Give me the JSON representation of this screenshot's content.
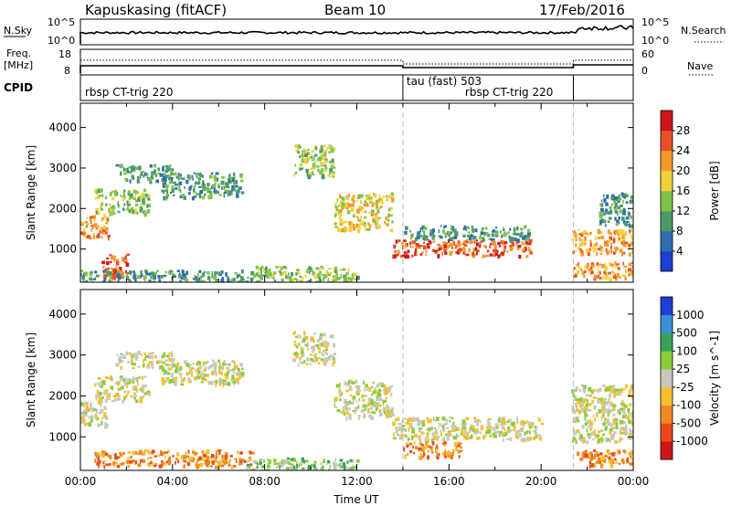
{
  "header": {
    "station": "Kapuskasing (fitACF)",
    "beam": "Beam 10",
    "date": "17/Feb/2016"
  },
  "top_panel": {
    "left_label_1": "N.Sky",
    "left_label_2": "Freq.",
    "left_label_2b": "[MHz]",
    "left_label_3": "CPID",
    "right_label_1": "N.Search",
    "right_label_2": "Nave",
    "nsky_ticks": [
      "10^5",
      "10^0"
    ],
    "freq_ticks": [
      "18",
      "8"
    ],
    "nave_ticks": [
      "60",
      "0"
    ],
    "cpid_segments": [
      {
        "start_hour": 0.0,
        "end_hour": 14.0,
        "label": "rbsp CT-trig 220"
      },
      {
        "start_hour": 14.0,
        "end_hour": 21.4,
        "label": "tau (fast) 503"
      },
      {
        "start_hour": 14.0,
        "end_hour": 21.4,
        "label": "rbsp CT-trig 220"
      }
    ]
  },
  "chart_data": [
    {
      "type": "heatmap",
      "quantity": "Power",
      "ylabel": "Slant Range [km]",
      "ylim": [
        180,
        4600
      ],
      "xlim": [
        0,
        24
      ],
      "yticks": [
        "1000",
        "2000",
        "3000",
        "4000"
      ],
      "colorbar_label": "Power [dB]",
      "colorbar_ticks": [
        "4",
        "8",
        "12",
        "16",
        "20",
        "24",
        "28"
      ],
      "colorbar_colors": [
        "#1f3fd2",
        "#2f6db0",
        "#4c9a6a",
        "#7fc34a",
        "#f2d23c",
        "#f49a2a",
        "#e8502a",
        "#cc1818"
      ],
      "regions": [
        {
          "t0": 0.0,
          "t1": 1.2,
          "r0": 1300,
          "r1": 1900,
          "level": 5
        },
        {
          "t0": 0.6,
          "t1": 3.0,
          "r0": 1900,
          "r1": 2500,
          "level": 3
        },
        {
          "t0": 1.5,
          "t1": 4.0,
          "r0": 2700,
          "r1": 3100,
          "level": 2
        },
        {
          "t0": 3.5,
          "t1": 7.0,
          "r0": 2300,
          "r1": 2900,
          "level": 2
        },
        {
          "t0": 0.9,
          "t1": 2.0,
          "r0": 300,
          "r1": 900,
          "level": 6
        },
        {
          "t0": 0.0,
          "t1": 7.5,
          "r0": 200,
          "r1": 500,
          "level": 2
        },
        {
          "t0": 7.5,
          "t1": 12.0,
          "r0": 200,
          "r1": 600,
          "level": 3
        },
        {
          "t0": 9.2,
          "t1": 11.0,
          "r0": 2800,
          "r1": 3600,
          "level": 3
        },
        {
          "t0": 11.0,
          "t1": 13.5,
          "r0": 1500,
          "r1": 2400,
          "level": 4
        },
        {
          "t0": 13.5,
          "t1": 19.5,
          "r0": 850,
          "r1": 1250,
          "level": 6
        },
        {
          "t0": 14.0,
          "t1": 19.5,
          "r0": 1250,
          "r1": 1600,
          "level": 2
        },
        {
          "t0": 21.3,
          "t1": 24.0,
          "r0": 900,
          "r1": 1500,
          "level": 5
        },
        {
          "t0": 21.3,
          "t1": 24.0,
          "r0": 300,
          "r1": 700,
          "level": 5
        },
        {
          "t0": 22.5,
          "t1": 24.0,
          "r0": 1600,
          "r1": 2400,
          "level": 2
        }
      ]
    },
    {
      "type": "heatmap",
      "quantity": "Velocity",
      "ylabel": "Slant Range [km]",
      "xlabel": "Time UT",
      "ylim": [
        180,
        4600
      ],
      "xlim": [
        0,
        24
      ],
      "xticks": [
        "00:00",
        "04:00",
        "08:00",
        "12:00",
        "16:00",
        "20:00",
        "00:00"
      ],
      "yticks": [
        "1000",
        "2000",
        "3000",
        "4000"
      ],
      "colorbar_label": "Velocity [m s^-1]",
      "colorbar_ticks": [
        "1000",
        "500",
        "100",
        "25",
        "-25",
        "-100",
        "-500",
        "-1000"
      ],
      "colorbar_colors": [
        "#1f3fd2",
        "#3a8fd8",
        "#3aa35a",
        "#8ccc3c",
        "#c8c8c0",
        "#f4c030",
        "#f08a22",
        "#e84a1a",
        "#cc1818"
      ],
      "regions": [
        {
          "t0": 0.0,
          "t1": 1.2,
          "r0": 1300,
          "r1": 1900,
          "level": 4
        },
        {
          "t0": 0.6,
          "t1": 3.0,
          "r0": 1900,
          "r1": 2500,
          "level": 4
        },
        {
          "t0": 1.5,
          "t1": 4.0,
          "r0": 2700,
          "r1": 3100,
          "level": 4
        },
        {
          "t0": 3.5,
          "t1": 7.0,
          "r0": 2300,
          "r1": 2900,
          "level": 4
        },
        {
          "t0": 0.5,
          "t1": 7.5,
          "r0": 300,
          "r1": 700,
          "level": 6
        },
        {
          "t0": 7.0,
          "t1": 12.0,
          "r0": 200,
          "r1": 500,
          "level": 3
        },
        {
          "t0": 9.2,
          "t1": 11.0,
          "r0": 2800,
          "r1": 3600,
          "level": 4
        },
        {
          "t0": 11.0,
          "t1": 13.5,
          "r0": 1500,
          "r1": 2400,
          "level": 4
        },
        {
          "t0": 13.5,
          "t1": 20.0,
          "r0": 950,
          "r1": 1500,
          "level": 4
        },
        {
          "t0": 14.0,
          "t1": 16.5,
          "r0": 500,
          "r1": 900,
          "level": 6
        },
        {
          "t0": 21.3,
          "t1": 24.0,
          "r0": 900,
          "r1": 2300,
          "level": 4
        },
        {
          "t0": 21.5,
          "t1": 24.0,
          "r0": 300,
          "r1": 700,
          "level": 6
        }
      ]
    }
  ]
}
